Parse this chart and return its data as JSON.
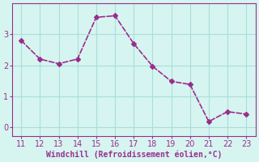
{
  "x": [
    11,
    12,
    13,
    14,
    15,
    16,
    17,
    18,
    19,
    20,
    21,
    22,
    23
  ],
  "y": [
    2.8,
    2.2,
    2.05,
    2.2,
    3.55,
    3.6,
    2.7,
    1.97,
    1.48,
    1.38,
    0.18,
    0.5,
    0.42
  ],
  "line_color": "#9b2d8e",
  "marker": "D",
  "marker_size": 3,
  "bg_color": "#d6f5f0",
  "grid_color": "#aadddd",
  "xlabel": "Windchill (Refroidissement éolien,°C)",
  "xlabel_color": "#9b2d8e",
  "tick_color": "#9b2d8e",
  "ylim": [
    -0.3,
    4.0
  ],
  "xlim": [
    10.5,
    23.5
  ],
  "yticks": [
    0,
    1,
    2,
    3
  ],
  "xticks": [
    11,
    12,
    13,
    14,
    15,
    16,
    17,
    18,
    19,
    20,
    21,
    22,
    23
  ],
  "linewidth": 1.2
}
